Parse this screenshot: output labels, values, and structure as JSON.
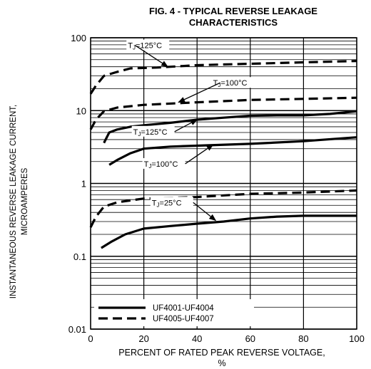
{
  "chart_data": {
    "type": "line",
    "title": "FIG. 4 - TYPICAL REVERSE LEAKAGE",
    "subtitle": "CHARACTERISTICS",
    "xlabel_line1": "PERCENT OF RATED PEAK REVERSE VOLTAGE,",
    "xlabel_line2": "%",
    "ylabel_line1": "INSTANTANEOUS REVERSE LEAKAGE CURRENT,",
    "ylabel_line2": "MICROAMPERES",
    "xlim": [
      0,
      100
    ],
    "ylim": [
      0.01,
      100
    ],
    "y_scale": "log",
    "grid": true,
    "x_ticks": [
      "0",
      "20",
      "40",
      "60",
      "80",
      "100"
    ],
    "y_ticks": [
      "0.01",
      "0.1",
      "1",
      "10",
      "100"
    ],
    "legend": {
      "placement": "bottom-left",
      "entries": [
        {
          "label": "UF4001-UF4004",
          "style": "solid"
        },
        {
          "label": "UF4005-UF4007",
          "style": "dashed"
        }
      ]
    },
    "series": [
      {
        "style": "dashed",
        "label": "TJ=125°C",
        "x": [
          0,
          2,
          5,
          10,
          15,
          25,
          40,
          60,
          80,
          100
        ],
        "y": [
          17,
          22,
          30,
          34,
          38,
          39,
          42,
          44,
          46,
          48
        ]
      },
      {
        "style": "dashed",
        "label": "TJ=100°C",
        "x": [
          0,
          2,
          5,
          10,
          20,
          40,
          60,
          80,
          100
        ],
        "y": [
          5.5,
          7.5,
          9.8,
          11,
          12,
          13,
          14,
          14.5,
          15
        ]
      },
      {
        "style": "solid",
        "label": "TJ=125°C",
        "x": [
          5,
          7,
          10,
          15,
          20,
          30,
          40,
          50,
          60,
          70,
          80,
          90,
          100
        ],
        "y": [
          3.6,
          5,
          5.5,
          6,
          6.3,
          6.8,
          7.5,
          8,
          8.5,
          8.6,
          8.6,
          9,
          9.8
        ]
      },
      {
        "style": "solid",
        "label": "TJ=100°C",
        "x": [
          7,
          10,
          15,
          20,
          30,
          40,
          60,
          80,
          100
        ],
        "y": [
          1.8,
          2.1,
          2.6,
          3,
          3.2,
          3.3,
          3.5,
          3.8,
          4.3
        ]
      },
      {
        "style": "dashed",
        "label": "TJ=25°C",
        "x": [
          0,
          2,
          5,
          10,
          20,
          40,
          60,
          80,
          100
        ],
        "y": [
          0.25,
          0.35,
          0.48,
          0.55,
          0.62,
          0.65,
          0.72,
          0.75,
          0.8
        ]
      },
      {
        "style": "solid",
        "label": "",
        "x": [
          4,
          8,
          13,
          20,
          30,
          40,
          50,
          60,
          70,
          80,
          90,
          100
        ],
        "y": [
          0.13,
          0.16,
          0.2,
          0.24,
          0.26,
          0.28,
          0.3,
          0.33,
          0.35,
          0.36,
          0.36,
          0.36
        ]
      }
    ],
    "annotations": [
      {
        "text_main": "T",
        "text_sub": "J",
        "text_rest": "=125°C",
        "x": 14,
        "y": 72,
        "arrow_to": [
          29,
          40
        ]
      },
      {
        "text_main": "T",
        "text_sub": "J",
        "text_rest": "=100°C",
        "x": 46,
        "y": 22,
        "arrow_to": [
          33,
          13
        ]
      },
      {
        "text_main": "T",
        "text_sub": "J",
        "text_rest": "=125°C",
        "x": 16,
        "y": 4.7,
        "arrow_to": [
          40,
          7.5
        ]
      },
      {
        "text_main": "T",
        "text_sub": "J",
        "text_rest": "=100°C",
        "x": 20,
        "y": 1.7,
        "arrow_to": [
          46,
          3.4
        ]
      },
      {
        "text_main": "T",
        "text_sub": "J",
        "text_rest": "=25°C",
        "x": 23,
        "y": 0.5,
        "arrow_to": [
          47,
          0.31
        ]
      }
    ]
  }
}
